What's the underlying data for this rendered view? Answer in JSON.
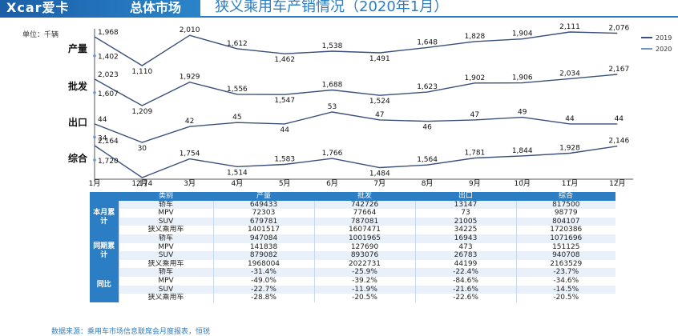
{
  "header": {
    "brand": "Xcar爱卡",
    "section": "总体市场",
    "title": "狭义乘用车产销情况（2020年1月）"
  },
  "unit_label": "单位：千辆",
  "legend": [
    {
      "name": "2019",
      "color": "#3a4f7a"
    },
    {
      "name": "2020",
      "color": "#6f95c9"
    }
  ],
  "chart_data": {
    "type": "line",
    "categories": [
      "1月",
      "2月",
      "3月",
      "4月",
      "5月",
      "6月",
      "7月",
      "8月",
      "9月",
      "10月",
      "11月",
      "12月"
    ],
    "panels": [
      {
        "label": "产量",
        "series": [
          {
            "name": "2019",
            "values": [
              1968,
              1110,
              2010,
              1612,
              1462,
              1538,
              1491,
              1648,
              1828,
              1904,
              2111,
              2076
            ]
          },
          {
            "name": "2020",
            "values": [
              1402
            ]
          }
        ]
      },
      {
        "label": "批发",
        "series": [
          {
            "name": "2019",
            "values": [
              2023,
              1209,
              1929,
              1556,
              1547,
              1688,
              1524,
              1623,
              1902,
              1906,
              2034,
              2167
            ]
          },
          {
            "name": "2020",
            "values": [
              1607
            ]
          }
        ]
      },
      {
        "label": "出口",
        "series": [
          {
            "name": "2019",
            "values": [
              44,
              30,
              42,
              45,
              44,
              53,
              47,
              46,
              47,
              49,
              44,
              44
            ]
          },
          {
            "name": "2020",
            "values": [
              34
            ]
          }
        ]
      },
      {
        "label": "综合",
        "series": [
          {
            "name": "2019",
            "values": [
              2164,
              1174,
              1754,
              1514,
              1583,
              1766,
              1484,
              1564,
              1781,
              1844,
              1928,
              2146
            ]
          },
          {
            "name": "2020",
            "values": [
              1720
            ]
          }
        ]
      }
    ]
  },
  "table": {
    "headers": [
      "类别",
      "产量",
      "批发",
      "出口",
      "综合"
    ],
    "groups": [
      {
        "label": "本月累计",
        "rows": [
          [
            "轿车",
            "649433",
            "742726",
            "13147",
            "817500"
          ],
          [
            "MPV",
            "72303",
            "77664",
            "73",
            "98779"
          ],
          [
            "SUV",
            "679781",
            "787081",
            "21005",
            "804107"
          ],
          [
            "狭义乘用车",
            "1401517",
            "1607471",
            "34225",
            "1720386"
          ]
        ]
      },
      {
        "label": "同期累计",
        "rows": [
          [
            "轿车",
            "947084",
            "1001965",
            "16943",
            "1071696"
          ],
          [
            "MPV",
            "141838",
            "127690",
            "473",
            "151125"
          ],
          [
            "SUV",
            "879082",
            "893076",
            "26783",
            "940708"
          ],
          [
            "狭义乘用车",
            "1968004",
            "2022731",
            "44199",
            "2163529"
          ]
        ]
      },
      {
        "label": "同比",
        "rows": [
          [
            "轿车",
            "-31.4%",
            "-25.9%",
            "-22.4%",
            "-23.7%"
          ],
          [
            "MPV",
            "-49.0%",
            "-39.2%",
            "-84.6%",
            "-34.6%"
          ],
          [
            "SUV",
            "-22.7%",
            "-11.9%",
            "-21.6%",
            "-14.5%"
          ],
          [
            "狭义乘用车",
            "-28.8%",
            "-20.5%",
            "-22.6%",
            "-20.5%"
          ]
        ]
      }
    ]
  },
  "source": "数据来源：乘用车市场信息联席会月度报表，恒锐"
}
